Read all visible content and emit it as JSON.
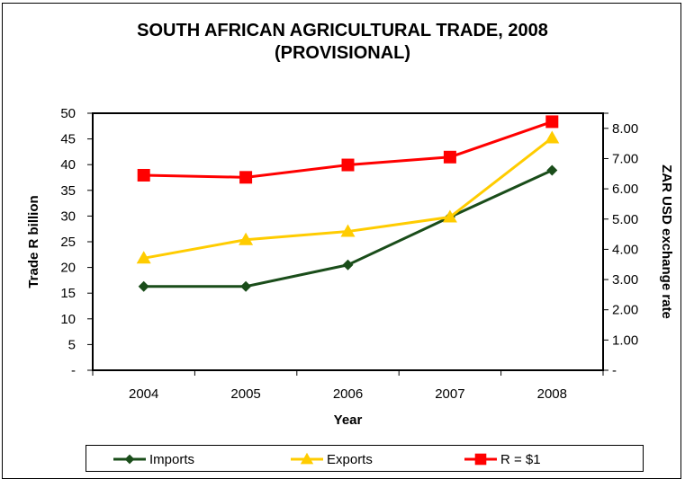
{
  "chart_data": {
    "type": "line",
    "title": "SOUTH AFRICAN AGRICULTURAL TRADE, 2008",
    "subtitle": "(PROVISIONAL)",
    "xlabel": "Year",
    "ylabel": "Trade R billion",
    "y2label": "ZAR USD exchange rate",
    "categories": [
      "2004",
      "2005",
      "2006",
      "2007",
      "2008"
    ],
    "ylim": [
      0,
      50
    ],
    "yticks": [
      "-",
      "5",
      "10",
      "15",
      "20",
      "25",
      "30",
      "35",
      "40",
      "45",
      "50"
    ],
    "y2lim": [
      0,
      8.5
    ],
    "y2ticks": [
      "-",
      "1.00",
      "2.00",
      "3.00",
      "4.00",
      "5.00",
      "6.00",
      "7.00",
      "8.00"
    ],
    "grid": false,
    "legend_position": "bottom",
    "series": [
      {
        "name": "Imports",
        "axis": "left",
        "color": "#1a4d1a",
        "marker": "diamond",
        "values": [
          16.3,
          16.3,
          20.5,
          29.8,
          38.9
        ]
      },
      {
        "name": "Exports",
        "axis": "left",
        "color": "#ffcc00",
        "marker": "triangle",
        "values": [
          21.8,
          25.4,
          27.0,
          29.8,
          45.2
        ]
      },
      {
        "name": "R = $1",
        "axis": "right",
        "color": "#ff0000",
        "marker": "square",
        "values": [
          6.45,
          6.38,
          6.79,
          7.05,
          8.22
        ]
      }
    ]
  }
}
